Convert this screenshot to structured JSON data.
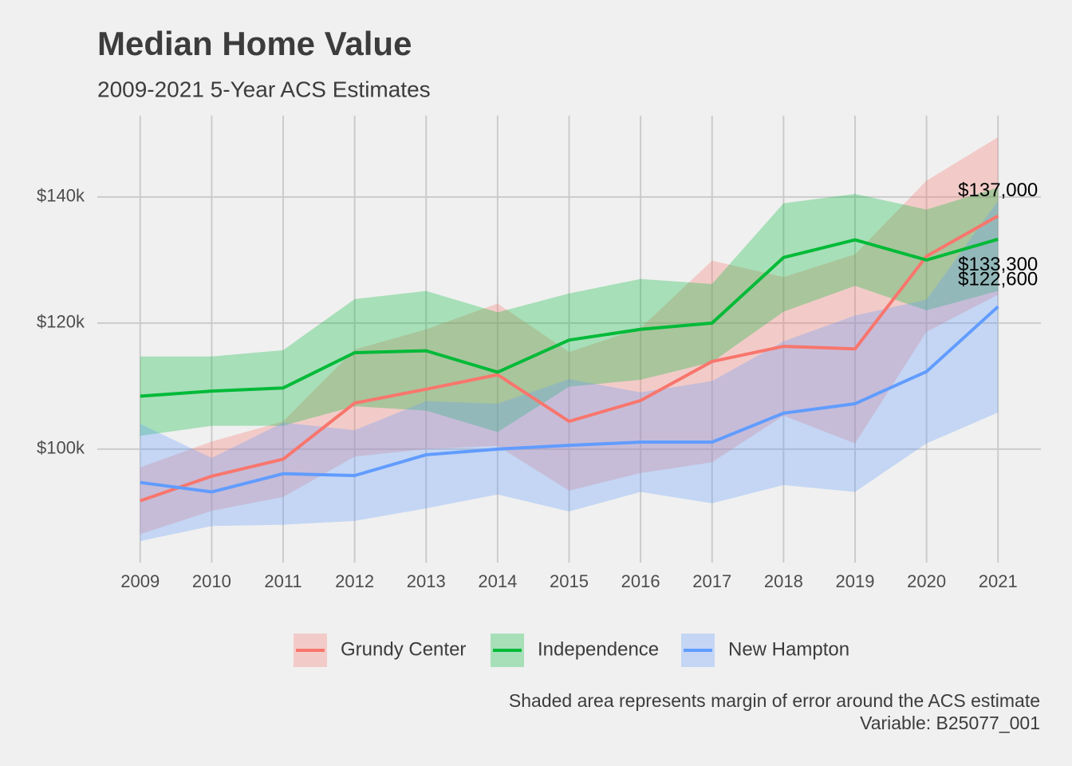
{
  "chart_data": {
    "type": "line",
    "title": "Median Home Value",
    "subtitle": "2009-2021 5-Year ACS Estimates",
    "caption": [
      "Shaded area represents margin of error around the ACS estimate",
      "Variable: B25077_001"
    ],
    "x": [
      2009,
      2010,
      2011,
      2012,
      2013,
      2014,
      2015,
      2016,
      2017,
      2018,
      2019,
      2020,
      2021
    ],
    "xlim": [
      2008.4,
      2021.6
    ],
    "xticks": [
      2009,
      2010,
      2011,
      2012,
      2013,
      2014,
      2015,
      2016,
      2017,
      2018,
      2019,
      2020,
      2021
    ],
    "ylim": [
      82000,
      152900
    ],
    "yticks": [
      {
        "value": 100000,
        "label": "$100k"
      },
      {
        "value": 120000,
        "label": "$120k"
      },
      {
        "value": 140000,
        "label": "$140k"
      }
    ],
    "grid": true,
    "legend": "bottom",
    "series": [
      {
        "name": "Grundy Center",
        "color": "#F8766D",
        "values": [
          91800,
          95700,
          98400,
          107300,
          109500,
          111800,
          104400,
          107700,
          113900,
          116300,
          115900,
          130600,
          137000
        ],
        "moe": [
          5300,
          5500,
          6000,
          8500,
          9500,
          11300,
          11000,
          11500,
          16000,
          11000,
          15000,
          12000,
          12500
        ],
        "value_labels": [
          null,
          null,
          null,
          null,
          null,
          null,
          null,
          null,
          null,
          null,
          null,
          null,
          "$137,000"
        ]
      },
      {
        "name": "Independence",
        "color": "#00BA38",
        "values": [
          108400,
          109200,
          109700,
          115300,
          115600,
          112200,
          117300,
          119000,
          120000,
          130400,
          133200,
          130000,
          133300
        ],
        "moe": [
          6300,
          5500,
          6000,
          8500,
          9500,
          9500,
          7400,
          8000,
          6200,
          8600,
          7300,
          8000,
          8200
        ],
        "value_labels": [
          null,
          null,
          null,
          null,
          null,
          null,
          null,
          null,
          null,
          null,
          null,
          null,
          "$133,300"
        ]
      },
      {
        "name": "New Hampton",
        "color": "#619CFF",
        "values": [
          94700,
          93200,
          96100,
          95800,
          99100,
          100000,
          100600,
          101100,
          101100,
          105700,
          107200,
          112300,
          122600
        ],
        "moe": [
          9300,
          5400,
          8100,
          7200,
          8500,
          7200,
          10500,
          7900,
          9700,
          11400,
          14000,
          11400,
          16800
        ],
        "value_labels": [
          null,
          null,
          null,
          null,
          null,
          null,
          null,
          null,
          null,
          null,
          null,
          null,
          "$122,600"
        ]
      }
    ]
  }
}
